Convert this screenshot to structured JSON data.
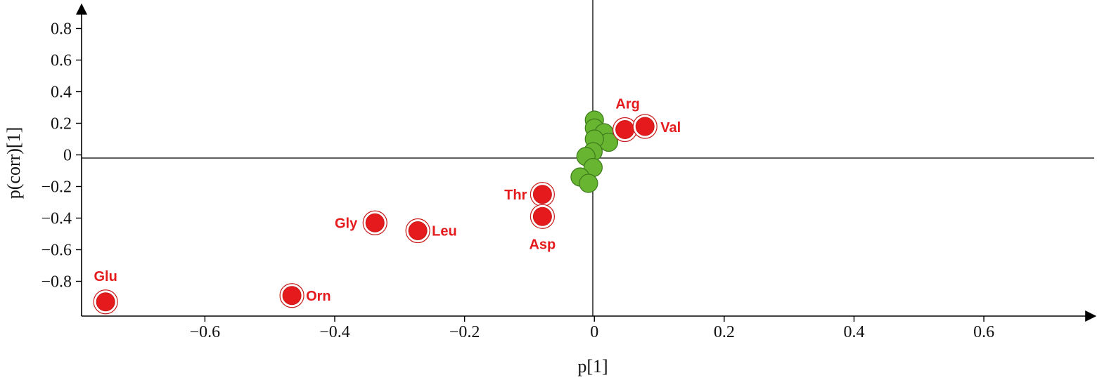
{
  "chart_data": {
    "type": "scatter",
    "title": "",
    "xlabel": "p[1]",
    "ylabel": "p(corr)[1]",
    "xlim": [
      -0.79,
      0.77
    ],
    "ylim": [
      -1.02,
      0.98
    ],
    "x_ticks": [
      -0.6,
      -0.4,
      -0.2,
      0,
      0.2,
      0.4,
      0.6
    ],
    "x_tick_labels": [
      "−0.6",
      "−0.4",
      "−0.2",
      "0",
      "0.2",
      "0.4",
      "0.6"
    ],
    "y_ticks": [
      0.8,
      0.6,
      0.4,
      0.2,
      0,
      -0.2,
      -0.4,
      -0.6,
      -0.8
    ],
    "y_tick_labels": [
      "0.8",
      "0.6",
      "0.4",
      "0.2",
      "0",
      "−0.2",
      "−0.4",
      "−0.6",
      "−0.8"
    ],
    "grid": false,
    "colors": {
      "highlighted": "#e41a1c",
      "other": "#67b530",
      "highlighted_edge": "#c81a1a",
      "other_edge": "#3c7a1c",
      "axis": "#000000"
    },
    "series": [
      {
        "color": "#67b530",
        "points": [
          {
            "x": 0.0,
            "y": 0.22
          },
          {
            "x": 0.0,
            "y": 0.17
          },
          {
            "x": 0.015,
            "y": 0.14
          },
          {
            "x": 0.022,
            "y": 0.08
          },
          {
            "x": 0.0,
            "y": 0.1
          },
          {
            "x": -0.002,
            "y": 0.02
          },
          {
            "x": -0.013,
            "y": -0.01
          },
          {
            "x": -0.002,
            "y": -0.08
          },
          {
            "x": -0.022,
            "y": -0.14
          },
          {
            "x": -0.009,
            "y": -0.18
          }
        ]
      },
      {
        "color": "#e41a1c",
        "points": [
          {
            "x": 0.047,
            "y": 0.16,
            "label": "Arg"
          },
          {
            "x": 0.078,
            "y": 0.18,
            "label": "Val"
          },
          {
            "x": -0.08,
            "y": -0.25,
            "label": "Thr"
          },
          {
            "x": -0.08,
            "y": -0.39,
            "label": "Asp"
          },
          {
            "x": -0.338,
            "y": -0.43,
            "label": "Gly"
          },
          {
            "x": -0.272,
            "y": -0.48,
            "label": "Leu"
          },
          {
            "x": -0.466,
            "y": -0.89,
            "label": "Orn"
          },
          {
            "x": -0.753,
            "y": -0.93,
            "label": "Glu"
          }
        ]
      }
    ]
  }
}
